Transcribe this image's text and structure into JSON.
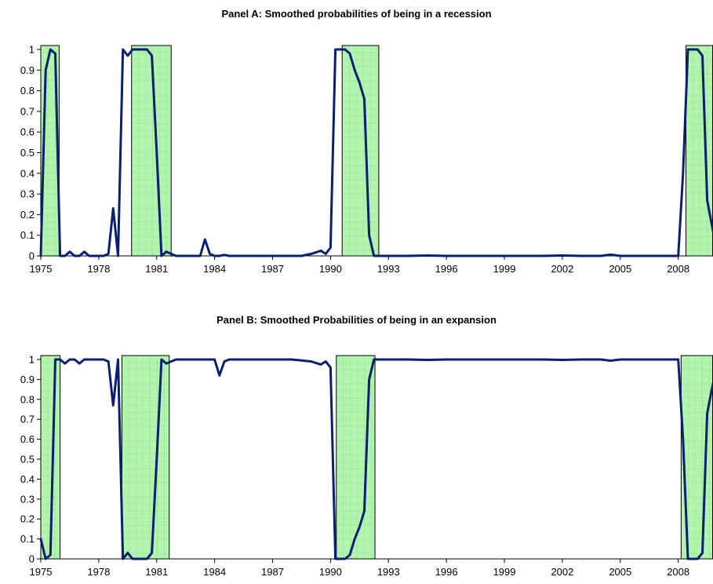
{
  "chart_data": [
    {
      "type": "line",
      "title": "Panel A: Smoothed probabilities of being in a recession",
      "xlabel": "",
      "ylabel": "",
      "xlim": [
        1975.0,
        2009.8
      ],
      "ylim": [
        0,
        1
      ],
      "x_ticks": [
        "1975",
        "1978",
        "1981",
        "1984",
        "1987",
        "1990",
        "1993",
        "1996",
        "1999",
        "2002",
        "2005",
        "2008"
      ],
      "y_ticks": [
        "0",
        "0.1",
        "0.2",
        "0.3",
        "0.4",
        "0.5",
        "0.6",
        "0.7",
        "0.8",
        "0.9",
        "1"
      ],
      "grid": false,
      "shaded_regions": [
        {
          "start": 1975.0,
          "end": 1975.95
        },
        {
          "start": 1979.7,
          "end": 1981.75
        },
        {
          "start": 1990.6,
          "end": 1992.5
        },
        {
          "start": 2008.4,
          "end": 2009.8
        }
      ],
      "series": [
        {
          "color": "#0a1f6e",
          "x": [
            1975.0,
            1975.25,
            1975.5,
            1975.75,
            1976.0,
            1976.25,
            1976.5,
            1976.75,
            1977.0,
            1977.25,
            1977.5,
            1977.75,
            1978.0,
            1978.25,
            1978.5,
            1978.75,
            1979.0,
            1979.25,
            1979.5,
            1979.75,
            1980.0,
            1980.25,
            1980.5,
            1980.75,
            1981.0,
            1981.25,
            1981.5,
            1981.75,
            1982.0,
            1982.25,
            1982.5,
            1982.75,
            1983.0,
            1983.25,
            1983.5,
            1983.75,
            1984.0,
            1984.25,
            1984.5,
            1984.75,
            1985.0,
            1985.5,
            1986.0,
            1986.5,
            1987.0,
            1987.5,
            1988.0,
            1988.5,
            1989.0,
            1989.5,
            1989.75,
            1990.0,
            1990.25,
            1990.5,
            1990.75,
            1991.0,
            1991.25,
            1991.5,
            1991.75,
            1992.0,
            1992.25,
            1992.5,
            1992.75,
            1993.0,
            1994.0,
            1995.0,
            1996.0,
            1997.0,
            1998.0,
            1999.0,
            2000.0,
            2001.0,
            2002.0,
            2003.0,
            2004.0,
            2004.5,
            2005.0,
            2006.0,
            2007.0,
            2007.5,
            2007.75,
            2008.0,
            2008.25,
            2008.5,
            2008.75,
            2009.0,
            2009.25,
            2009.5,
            2009.8
          ],
          "values": [
            0.0,
            0.9,
            1.0,
            0.98,
            0.0,
            0.0,
            0.02,
            0.0,
            0.0,
            0.02,
            0.0,
            0.0,
            0.0,
            0.0,
            0.01,
            0.23,
            0.0,
            1.0,
            0.97,
            1.0,
            1.0,
            1.0,
            1.0,
            0.97,
            0.5,
            0.0,
            0.02,
            0.01,
            0.0,
            0.0,
            0.0,
            0.0,
            0.0,
            0.0,
            0.08,
            0.01,
            0.0,
            0.0,
            0.005,
            0.0,
            0.0,
            0.0,
            0.0,
            0.0,
            0.0,
            0.0,
            0.0,
            0.0,
            0.01,
            0.025,
            0.01,
            0.04,
            1.0,
            1.0,
            1.0,
            0.98,
            0.9,
            0.84,
            0.76,
            0.1,
            0.0,
            0.0,
            0.0,
            0.0,
            0.0,
            0.002,
            0.0,
            0.0,
            0.0,
            0.0,
            0.0,
            0.0,
            0.002,
            0.0,
            0.0,
            0.006,
            0.0,
            0.0,
            0.0,
            0.0,
            0.0,
            0.0,
            0.4,
            1.0,
            1.0,
            1.0,
            0.97,
            0.27,
            0.12
          ]
        }
      ]
    },
    {
      "type": "line",
      "title": "Panel B: Smoothed Probabilities of being in an expansion",
      "xlabel": "",
      "ylabel": "",
      "xlim": [
        1975.0,
        2009.8
      ],
      "ylim": [
        0,
        1
      ],
      "x_ticks": [
        "1975",
        "1978",
        "1981",
        "1984",
        "1987",
        "1990",
        "1993",
        "1996",
        "1999",
        "2002",
        "2005",
        "2008"
      ],
      "y_ticks": [
        "0",
        "0.1",
        "0.2",
        "0.3",
        "0.4",
        "0.5",
        "0.6",
        "0.7",
        "0.8",
        "0.9",
        "1"
      ],
      "grid": false,
      "shaded_regions": [
        {
          "start": 1975.0,
          "end": 1976.0
        },
        {
          "start": 1979.2,
          "end": 1981.65
        },
        {
          "start": 1990.3,
          "end": 1992.3
        },
        {
          "start": 2008.15,
          "end": 2009.8
        }
      ],
      "series": [
        {
          "color": "#0a1f6e",
          "x": [
            1975.0,
            1975.25,
            1975.5,
            1975.75,
            1976.0,
            1976.25,
            1976.5,
            1976.75,
            1977.0,
            1977.25,
            1977.5,
            1977.75,
            1978.0,
            1978.25,
            1978.5,
            1978.75,
            1979.0,
            1979.25,
            1979.5,
            1979.75,
            1980.0,
            1980.25,
            1980.5,
            1980.75,
            1981.0,
            1981.25,
            1981.5,
            1981.75,
            1982.0,
            1982.25,
            1982.5,
            1982.75,
            1983.0,
            1983.5,
            1984.0,
            1984.25,
            1984.5,
            1984.75,
            1985.0,
            1986.0,
            1987.0,
            1988.0,
            1989.0,
            1989.5,
            1989.75,
            1990.0,
            1990.25,
            1990.5,
            1990.75,
            1991.0,
            1991.25,
            1991.5,
            1991.75,
            1992.0,
            1992.25,
            1992.5,
            1993.0,
            1994.0,
            1995.0,
            1996.0,
            1997.0,
            1998.0,
            1999.0,
            2000.0,
            2001.0,
            2002.0,
            2003.0,
            2004.0,
            2004.5,
            2005.0,
            2006.0,
            2007.0,
            2007.5,
            2007.75,
            2008.0,
            2008.25,
            2008.5,
            2008.75,
            2009.0,
            2009.25,
            2009.5,
            2009.8
          ],
          "values": [
            0.1,
            0.0,
            0.02,
            1.0,
            1.0,
            0.98,
            1.0,
            1.0,
            0.98,
            1.0,
            1.0,
            1.0,
            1.0,
            1.0,
            0.99,
            0.77,
            1.0,
            0.0,
            0.03,
            0.0,
            0.0,
            0.0,
            0.0,
            0.03,
            0.5,
            1.0,
            0.98,
            0.99,
            1.0,
            1.0,
            1.0,
            1.0,
            1.0,
            1.0,
            1.0,
            0.92,
            0.99,
            1.0,
            1.0,
            1.0,
            1.0,
            1.0,
            0.99,
            0.975,
            0.99,
            0.96,
            0.0,
            0.0,
            0.0,
            0.02,
            0.1,
            0.16,
            0.24,
            0.9,
            1.0,
            1.0,
            1.0,
            1.0,
            0.998,
            1.0,
            1.0,
            1.0,
            1.0,
            1.0,
            1.0,
            0.998,
            1.0,
            1.0,
            0.994,
            1.0,
            1.0,
            1.0,
            1.0,
            1.0,
            1.0,
            0.6,
            0.0,
            0.0,
            0.0,
            0.03,
            0.73,
            0.88
          ]
        }
      ]
    }
  ]
}
